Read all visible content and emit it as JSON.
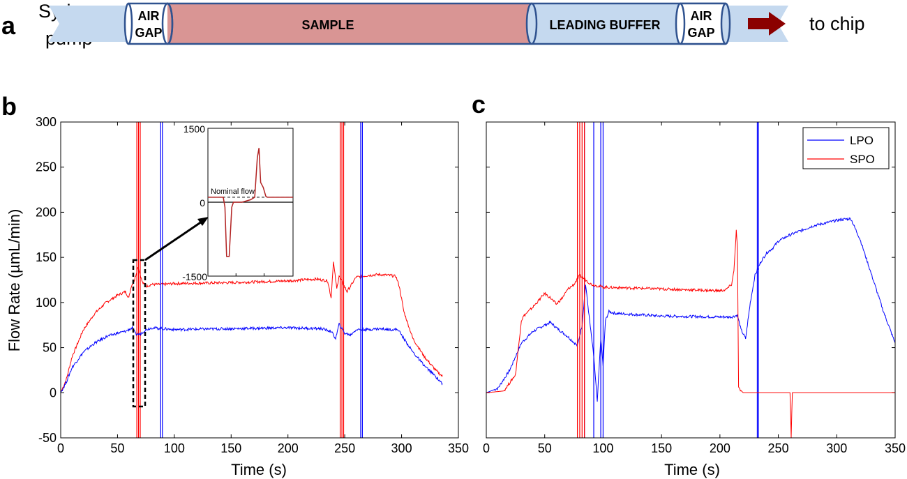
{
  "panel_a": {
    "letter": "a",
    "left_label_line1": "Syringe",
    "left_label_line2": "pump",
    "air_gap_line1": "AIR",
    "air_gap_line2": "GAP",
    "sample_label": "SAMPLE",
    "leading_buffer_label": "LEADING BUFFER",
    "right_label": "to chip",
    "colors": {
      "tube": "#c5d9ef",
      "sample": "#d99594",
      "outline": "#2f528f",
      "arrow": "#8b0000"
    }
  },
  "chart_data": [
    {
      "panel_letter": "b",
      "type": "line",
      "xlabel": "Time (s)",
      "ylabel": "Flow Rate (µmL/min)",
      "xlim": [
        0,
        350
      ],
      "ylim": [
        -50,
        300
      ],
      "xticks": [
        "0",
        "50",
        "100",
        "150",
        "200",
        "250",
        "300",
        "350"
      ],
      "yticks": [
        "-50",
        "0",
        "50",
        "100",
        "150",
        "200",
        "250",
        "300"
      ],
      "series": [
        {
          "color": "#ff0000",
          "x": [
            0,
            5,
            10,
            20,
            30,
            40,
            50,
            57,
            60,
            62,
            65,
            68,
            72,
            75,
            80,
            90,
            100,
            150,
            200,
            225,
            235,
            238,
            240,
            243,
            245,
            248,
            252,
            256,
            260,
            270,
            280,
            290,
            295,
            298,
            302,
            310,
            320,
            330,
            336
          ],
          "y": [
            0,
            15,
            40,
            70,
            88,
            100,
            108,
            112,
            105,
            118,
            125,
            140,
            122,
            118,
            120,
            120,
            121,
            122,
            124,
            126,
            124,
            105,
            145,
            115,
            130,
            122,
            112,
            120,
            128,
            130,
            131,
            130,
            129,
            118,
            90,
            60,
            40,
            25,
            18
          ],
          "spikes": [
            67,
            68.5,
            70,
            246,
            247.5,
            249
          ]
        },
        {
          "color": "#0000ff",
          "x": [
            0,
            5,
            10,
            20,
            30,
            40,
            50,
            57,
            60,
            63,
            66,
            70,
            75,
            80,
            90,
            100,
            150,
            200,
            230,
            238,
            242,
            245,
            250,
            255,
            260,
            270,
            280,
            290,
            297,
            302,
            310,
            320,
            330,
            336
          ],
          "y": [
            0,
            12,
            28,
            45,
            55,
            62,
            66,
            68,
            70,
            72,
            65,
            65,
            70,
            72,
            71,
            70,
            71,
            72,
            71,
            68,
            60,
            76,
            66,
            64,
            70,
            70,
            71,
            70,
            70,
            60,
            45,
            30,
            18,
            10
          ],
          "spikes": [
            88,
            89.5,
            264,
            265.5
          ]
        }
      ],
      "inset": {
        "ylim": [
          -1500,
          1500
        ],
        "yticks": [
          "1500",
          "0",
          "-1500"
        ],
        "note": "Nominal flow",
        "x": [
          0,
          0.1,
          0.15,
          0.18,
          0.2,
          0.22,
          0.25,
          0.28,
          0.3,
          0.35,
          0.4,
          0.5,
          0.55,
          0.58,
          0.6,
          0.62,
          0.65,
          0.68,
          0.7,
          0.75,
          1.0
        ],
        "y": [
          100,
          100,
          100,
          100,
          -100,
          -1100,
          -1100,
          -100,
          0,
          0,
          0,
          50,
          100,
          900,
          1100,
          400,
          300,
          120,
          100,
          100,
          100
        ]
      }
    },
    {
      "panel_letter": "c",
      "type": "line",
      "xlabel": "Time (s)",
      "xlim": [
        0,
        350
      ],
      "ylim": [
        -50,
        300
      ],
      "xticks": [
        "0",
        "50",
        "100",
        "150",
        "200",
        "250",
        "300",
        "350"
      ],
      "legend": {
        "position": "top-right",
        "entries": [
          "LPO",
          "SPO"
        ]
      },
      "series": [
        {
          "name": "LPO",
          "color": "#0000ff",
          "x": [
            0,
            10,
            20,
            30,
            40,
            50,
            55,
            60,
            70,
            78,
            82,
            85,
            88,
            92,
            95,
            98,
            100,
            102,
            105,
            110,
            150,
            200,
            210,
            215,
            218,
            222,
            226,
            230,
            235,
            240,
            245,
            250,
            260,
            270,
            280,
            290,
            300,
            305,
            312,
            320,
            330,
            340,
            350
          ],
          "y": [
            0,
            5,
            25,
            55,
            68,
            75,
            78,
            72,
            62,
            52,
            75,
            120,
            85,
            40,
            -10,
            60,
            30,
            80,
            90,
            88,
            85,
            84,
            84,
            86,
            70,
            60,
            100,
            130,
            145,
            155,
            160,
            168,
            175,
            180,
            185,
            188,
            191,
            192,
            193,
            170,
            130,
            90,
            55
          ],
          "spikes": [
            84,
            92,
            98,
            100,
            232,
            233
          ]
        },
        {
          "name": "SPO",
          "color": "#ff0000",
          "x": [
            0,
            15,
            25,
            30,
            32,
            40,
            50,
            55,
            60,
            65,
            70,
            75,
            80,
            90,
            100,
            150,
            200,
            205,
            210,
            212,
            214,
            215,
            216,
            220,
            225,
            230,
            240,
            250,
            260,
            261,
            262,
            263,
            350
          ],
          "y": [
            0,
            2,
            20,
            80,
            85,
            95,
            110,
            105,
            98,
            105,
            115,
            120,
            130,
            120,
            117,
            115,
            113,
            114,
            120,
            135,
            180,
            160,
            5,
            0,
            0,
            0,
            0,
            0,
            0,
            -50,
            0,
            0,
            0
          ],
          "spikes": [
            78,
            80,
            82,
            84
          ]
        }
      ]
    }
  ]
}
